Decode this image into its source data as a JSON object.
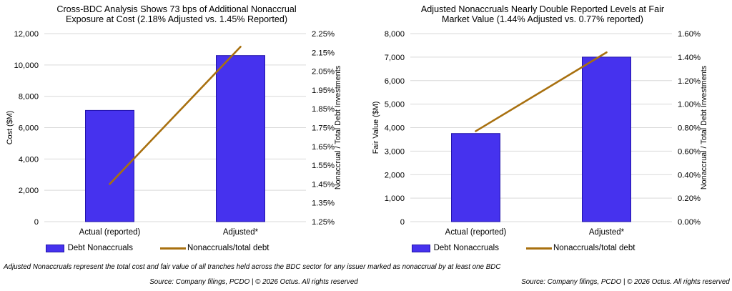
{
  "figure": {
    "footnote": "Adjusted Nonaccruals represent the total cost and fair value of all tranches held across the BDC sector for any issuer marked as nonaccrual by at least one BDC",
    "background": "#ffffff",
    "grid_color": "#d9d9d9",
    "text_color": "#000000"
  },
  "chart_data": [
    {
      "type": "bar",
      "title": "Cross-BDC Analysis Shows 73 bps of Additional Nonaccrual Exposure at Cost (2.18% Adjusted vs. 1.45% Reported)",
      "source": "Source: Company filings, PCDO | © 2026 Octus. All rights reserved",
      "categories": [
        "Actual (reported)",
        "Adjusted*"
      ],
      "series": [
        {
          "name": "Debt Nonaccruals",
          "type": "bar",
          "axis": "left",
          "values": [
            7100,
            10600
          ],
          "color": "#4632ee",
          "border_color": "#2012a8"
        },
        {
          "name": "Nonaccruals/total debt",
          "type": "line",
          "axis": "right",
          "values": [
            1.45,
            2.18
          ],
          "color": "#a8700f"
        }
      ],
      "left_axis": {
        "label": "Cost ($M)",
        "min": 0,
        "max": 12000,
        "step": 2000,
        "format": "thousands"
      },
      "right_axis": {
        "label": "Nonaccrual / Total Debt Investments",
        "min": 1.25,
        "max": 2.25,
        "step": 0.1,
        "format": "percent2"
      },
      "grid": true,
      "legend_position": "bottom"
    },
    {
      "type": "bar",
      "title": "Adjusted Nonaccruals Nearly Double Reported Levels at Fair Market Value (1.44% Adjusted vs. 0.77% reported)",
      "source": "Source: Company filings, PCDO | © 2026 Octus. All rights reserved",
      "categories": [
        "Actual (reported)",
        "Adjusted*"
      ],
      "series": [
        {
          "name": "Debt Nonaccruals",
          "type": "bar",
          "axis": "left",
          "values": [
            3750,
            7000
          ],
          "color": "#4632ee",
          "border_color": "#2012a8"
        },
        {
          "name": "Nonaccruals/total debt",
          "type": "line",
          "axis": "right",
          "values": [
            0.77,
            1.44
          ],
          "color": "#a8700f"
        }
      ],
      "left_axis": {
        "label": "Fair Value ($M)",
        "min": 0,
        "max": 8000,
        "step": 1000,
        "format": "thousands"
      },
      "right_axis": {
        "label": "Nonaccrual / Total Debt Investments",
        "min": 0.0,
        "max": 1.6,
        "step": 0.2,
        "format": "percent2"
      },
      "grid": true,
      "legend_position": "bottom"
    }
  ]
}
